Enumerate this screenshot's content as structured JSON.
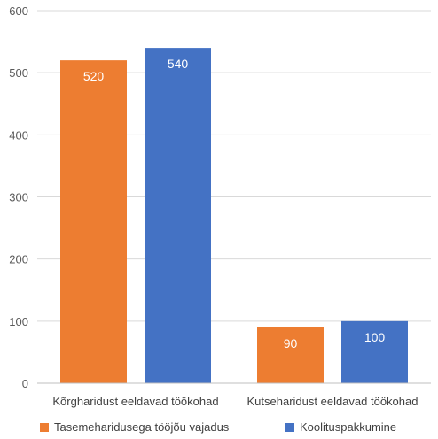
{
  "chart_data": {
    "type": "bar",
    "categories": [
      "Kõrgharidust eeldavad töökohad",
      "Kutseharidust eeldavad töökohad"
    ],
    "series": [
      {
        "name": "Tasemeharidusega tööjõu vajadus",
        "color": "#ED7D31",
        "values": [
          520,
          90
        ]
      },
      {
        "name": "Koolituspakkumine",
        "color": "#4472C4",
        "values": [
          540,
          100
        ]
      }
    ],
    "ylim": [
      0,
      600
    ],
    "yticks": [
      0,
      100,
      200,
      300,
      400,
      500,
      600
    ],
    "grid": true,
    "legend": "bottom",
    "data_labels": true
  }
}
